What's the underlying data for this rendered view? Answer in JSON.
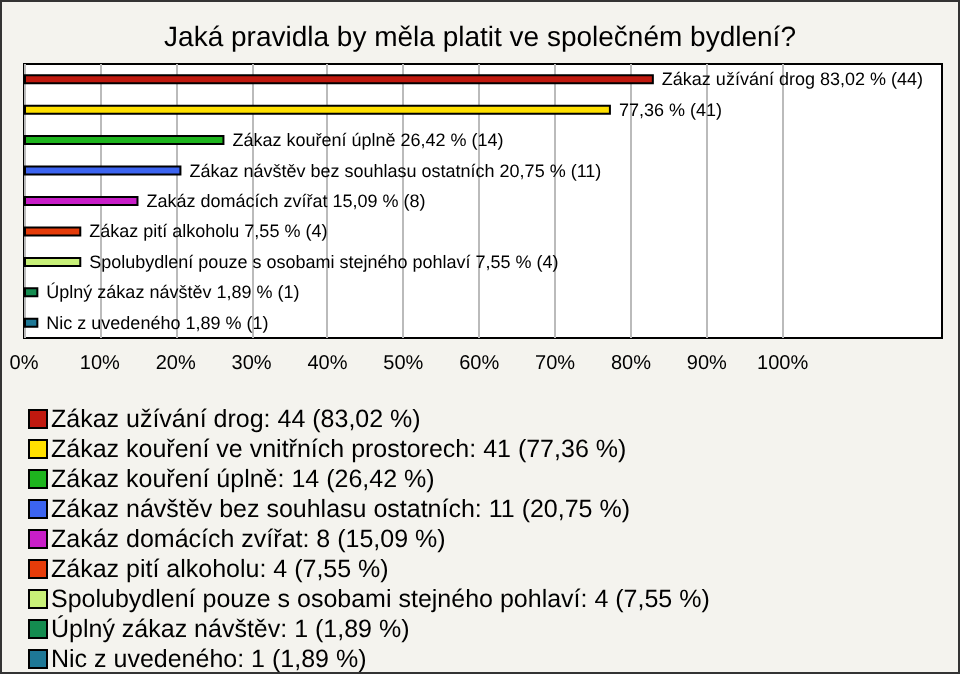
{
  "chart_data": {
    "type": "bar",
    "orientation": "horizontal",
    "title": "Jaká pravidla by měla platit ve společném bydlení?",
    "categories": [
      null,
      null,
      null,
      null,
      null,
      null,
      null,
      null,
      null
    ],
    "series": [
      {
        "name": "Zákaz užívání drog: 44 (83,02 %)",
        "color": "#c0190f",
        "values": [
          83.02,
          null,
          null,
          null,
          null,
          null,
          null,
          null,
          null
        ],
        "value_labels": [
          "Zákaz užívání drog 83,02 % (44)",
          null,
          null,
          null,
          null,
          null,
          null,
          null,
          null
        ]
      },
      {
        "name": "Zákaz kouření ve vnitřních prostorech: 41 (77,36 %)",
        "color": "#ffe000",
        "values": [
          null,
          77.36,
          null,
          null,
          null,
          null,
          null,
          null,
          null
        ],
        "value_labels": [
          null,
          "77,36 % (41)",
          null,
          null,
          null,
          null,
          null,
          null,
          null
        ]
      },
      {
        "name": "Zákaz kouření úplně: 14 (26,42 %)",
        "color": "#1eb41e",
        "values": [
          null,
          null,
          26.42,
          null,
          null,
          null,
          null,
          null,
          null
        ],
        "value_labels": [
          null,
          null,
          "Zákaz kouření úplně 26,42 % (14)",
          null,
          null,
          null,
          null,
          null,
          null
        ]
      },
      {
        "name": "Zákaz návštěv bez souhlasu ostatních: 11 (20,75 %)",
        "color": "#3c64f0",
        "values": [
          null,
          null,
          null,
          20.75,
          null,
          null,
          null,
          null,
          null
        ],
        "value_labels": [
          null,
          null,
          null,
          "Zákaz návštěv bez souhlasu ostatních 20,75 % (11)",
          null,
          null,
          null,
          null,
          null
        ]
      },
      {
        "name": "Zakáz domácích zvířat: 8 (15,09 %)",
        "color": "#c81ec8",
        "values": [
          null,
          null,
          null,
          null,
          15.09,
          null,
          null,
          null,
          null
        ],
        "value_labels": [
          null,
          null,
          null,
          null,
          "Zakáz domácích zvířat 15,09 % (8)",
          null,
          null,
          null,
          null
        ]
      },
      {
        "name": "Zákaz pití alkoholu: 4 (7,55 %)",
        "color": "#e63c0a",
        "values": [
          null,
          null,
          null,
          null,
          null,
          7.55,
          null,
          null,
          null
        ],
        "value_labels": [
          null,
          null,
          null,
          null,
          null,
          "Zákaz pití alkoholu 7,55 % (4)",
          null,
          null,
          null
        ]
      },
      {
        "name": "Spolubydlení pouze s osobami stejného pohlaví: 4 (7,55 %)",
        "color": "#c8f078",
        "values": [
          null,
          null,
          null,
          null,
          null,
          null,
          7.55,
          null,
          null
        ],
        "value_labels": [
          null,
          null,
          null,
          null,
          null,
          null,
          "Spolubydlení pouze s osobami stejného pohlaví 7,55 % (4)",
          null,
          null
        ]
      },
      {
        "name": "Úplný zákaz návštěv: 1 (1,89 %)",
        "color": "#148c50",
        "values": [
          null,
          null,
          null,
          null,
          null,
          null,
          null,
          1.89,
          null
        ],
        "value_labels": [
          null,
          null,
          null,
          null,
          null,
          null,
          null,
          "Úplný zákaz návštěv 1,89 % (1)",
          null
        ]
      },
      {
        "name": "Nic z uvedeného: 1 (1,89 %)",
        "color": "#1e7896",
        "values": [
          null,
          null,
          null,
          null,
          null,
          null,
          null,
          null,
          1.89
        ],
        "value_labels": [
          null,
          null,
          null,
          null,
          null,
          null,
          null,
          null,
          "Nic z uvedeného 1,89 % (1)"
        ]
      }
    ],
    "xlim": [
      0,
      121
    ],
    "xticks": [
      {
        "value": 0,
        "label": "0%"
      },
      {
        "value": 10,
        "label": "10%"
      },
      {
        "value": 20,
        "label": "20%"
      },
      {
        "value": 30,
        "label": "30%"
      },
      {
        "value": 40,
        "label": "40%"
      },
      {
        "value": 50,
        "label": "50%"
      },
      {
        "value": 60,
        "label": "60%"
      },
      {
        "value": 70,
        "label": "70%"
      },
      {
        "value": 80,
        "label": "80%"
      },
      {
        "value": 90,
        "label": "90%"
      },
      {
        "value": 100,
        "label": "100%"
      }
    ],
    "grid": "x",
    "legend": "bottom"
  }
}
